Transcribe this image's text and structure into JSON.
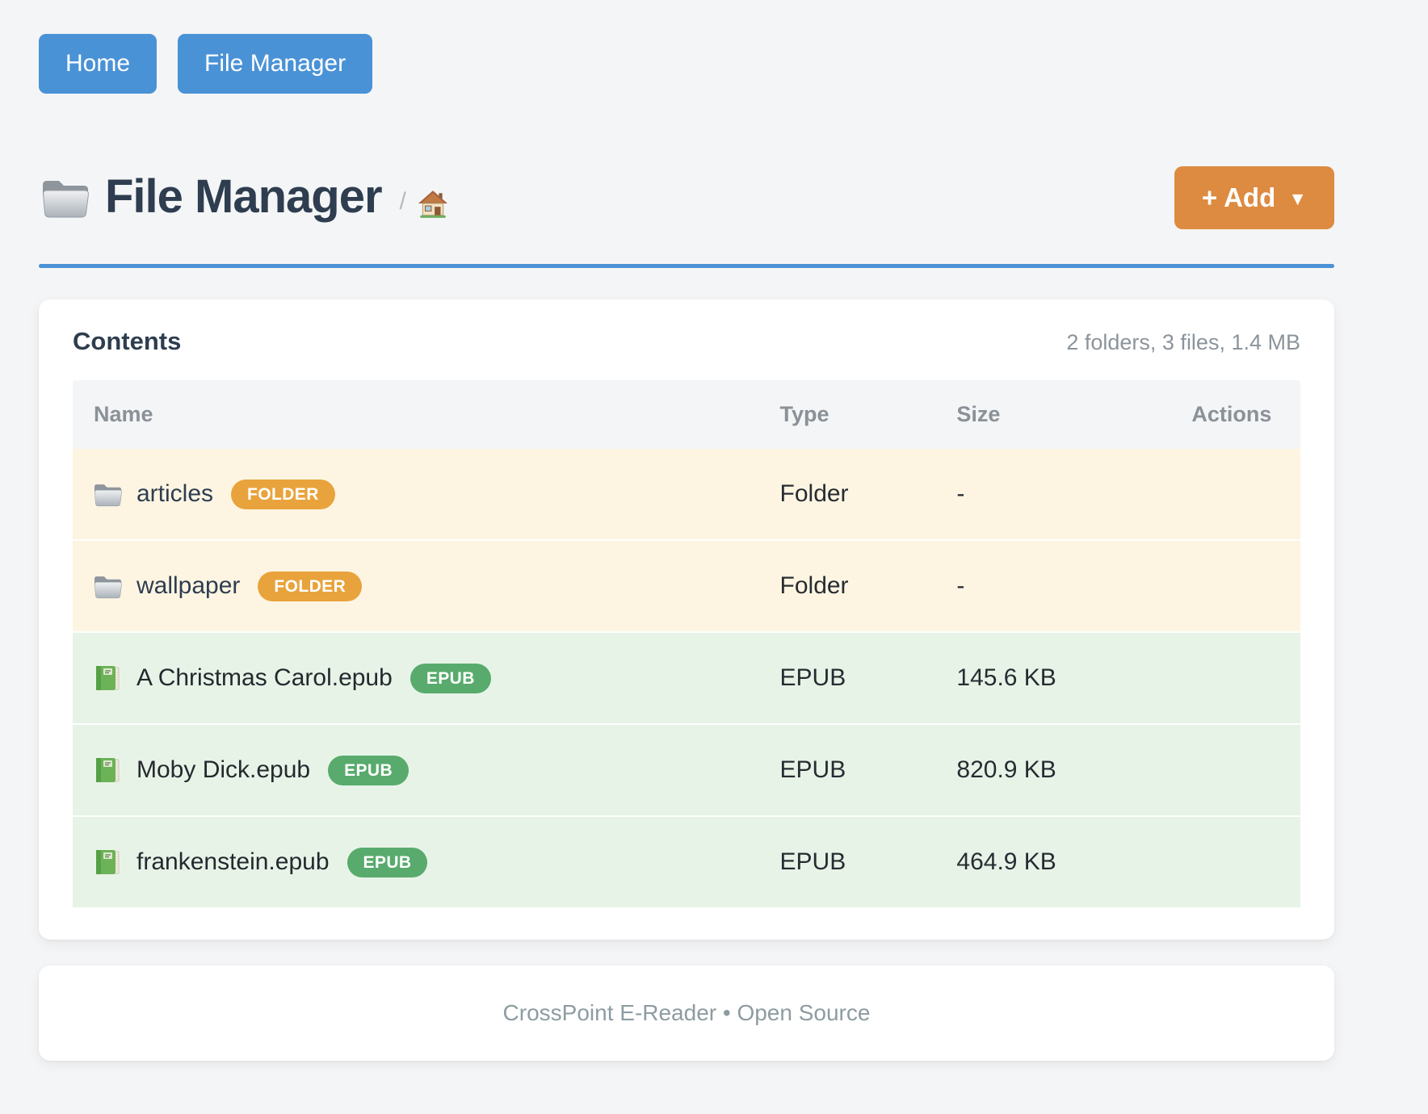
{
  "nav": {
    "home_label": "Home",
    "file_manager_label": "File Manager"
  },
  "header": {
    "title": "File Manager",
    "breadcrumb_separator": "/",
    "add_button_label": "+ Add",
    "add_button_caret": "▼"
  },
  "card": {
    "heading": "Contents",
    "summary": "2 folders, 3 files, 1.4 MB",
    "columns": [
      "Name",
      "Type",
      "Size",
      "Actions"
    ],
    "rows": [
      {
        "kind": "folder",
        "icon": "folder-icon",
        "name": "articles",
        "badge": "FOLDER",
        "type": "Folder",
        "size": "-"
      },
      {
        "kind": "folder",
        "icon": "folder-icon",
        "name": "wallpaper",
        "badge": "FOLDER",
        "type": "Folder",
        "size": "-"
      },
      {
        "kind": "epub",
        "icon": "book-icon",
        "name": "A Christmas Carol.epub",
        "badge": "EPUB",
        "type": "EPUB",
        "size": "145.6 KB"
      },
      {
        "kind": "epub",
        "icon": "book-icon",
        "name": "Moby Dick.epub",
        "badge": "EPUB",
        "type": "EPUB",
        "size": "820.9 KB"
      },
      {
        "kind": "epub",
        "icon": "book-icon",
        "name": "frankenstein.epub",
        "badge": "EPUB",
        "type": "EPUB",
        "size": "464.9 KB"
      }
    ]
  },
  "footer": {
    "text": "CrossPoint E-Reader • Open Source"
  },
  "colors": {
    "page_bg": "#f4f5f6",
    "accent_blue": "#4a92d6",
    "accent_orange": "#dd8b40",
    "badge_folder": "#e9a33c",
    "badge_epub": "#58ab6c",
    "row_folder_bg": "#fdf5e2",
    "row_epub_bg": "#e8f3e8"
  }
}
